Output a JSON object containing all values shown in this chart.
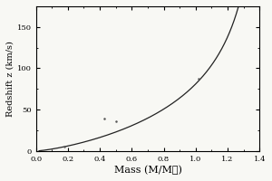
{
  "title": "",
  "xlabel": "Mass (M/M☉)",
  "ylabel": "Redshift z (km/s)",
  "xlim": [
    0.0,
    1.4
  ],
  "ylim": [
    0,
    175
  ],
  "yticks": [
    0,
    50,
    100,
    150
  ],
  "xticks": [
    0.0,
    0.2,
    0.4,
    0.6,
    0.8,
    1.0,
    1.2,
    1.4
  ],
  "scatter_points": [
    [
      0.18,
      5
    ],
    [
      0.43,
      39
    ],
    [
      0.5,
      36
    ],
    [
      1.02,
      87
    ]
  ],
  "line_color": "#222222",
  "scatter_color": "#555555",
  "background_color": "#f8f8f4",
  "figsize": [
    3.0,
    2.0
  ],
  "dpi": 100
}
